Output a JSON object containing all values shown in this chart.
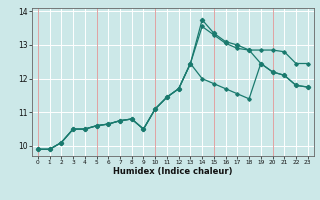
{
  "xlabel": "Humidex (Indice chaleur)",
  "bg_color": "#cce8e8",
  "grid_color": "#ffffff",
  "line_color": "#1a7a6e",
  "red_line_color": "#cc6666",
  "xlim": [
    -0.5,
    23.5
  ],
  "ylim": [
    9.7,
    14.1
  ],
  "yticks": [
    10,
    11,
    12,
    13,
    14
  ],
  "xticks": [
    0,
    1,
    2,
    3,
    4,
    5,
    6,
    7,
    8,
    9,
    10,
    11,
    12,
    13,
    14,
    15,
    16,
    17,
    18,
    19,
    20,
    21,
    22,
    23
  ],
  "red_vlines": [
    0,
    5,
    10,
    15,
    20
  ],
  "line1_x": [
    0,
    1,
    2,
    3,
    4,
    5,
    6,
    7,
    8,
    9,
    10,
    11,
    12,
    13,
    14,
    15,
    16,
    17,
    18,
    19,
    20,
    21,
    22,
    23
  ],
  "line1_y": [
    9.9,
    9.9,
    10.1,
    10.5,
    10.5,
    10.6,
    10.65,
    10.75,
    10.8,
    10.5,
    11.1,
    11.45,
    11.7,
    12.45,
    12.0,
    11.85,
    11.7,
    11.55,
    11.4,
    12.45,
    12.2,
    12.1,
    11.8,
    11.75
  ],
  "line2_x": [
    0,
    1,
    2,
    3,
    4,
    5,
    6,
    7,
    8,
    9,
    10,
    11,
    12,
    13,
    14,
    15,
    16,
    17,
    18,
    19,
    20,
    21,
    22,
    23
  ],
  "line2_y": [
    9.9,
    9.9,
    10.1,
    10.5,
    10.5,
    10.6,
    10.65,
    10.75,
    10.8,
    10.5,
    11.1,
    11.45,
    11.7,
    12.45,
    13.55,
    13.3,
    13.05,
    12.9,
    12.85,
    12.85,
    12.85,
    12.8,
    12.45,
    12.45
  ],
  "line3_x": [
    0,
    1,
    2,
    3,
    4,
    5,
    6,
    7,
    8,
    9,
    10,
    11,
    12,
    13,
    14,
    15,
    16,
    17,
    18,
    19,
    20,
    21,
    22,
    23
  ],
  "line3_y": [
    9.9,
    9.9,
    10.1,
    10.5,
    10.5,
    10.6,
    10.65,
    10.75,
    10.8,
    10.5,
    11.1,
    11.45,
    11.7,
    12.45,
    13.75,
    13.35,
    13.1,
    13.0,
    12.85,
    12.45,
    12.2,
    12.1,
    11.8,
    11.75
  ]
}
